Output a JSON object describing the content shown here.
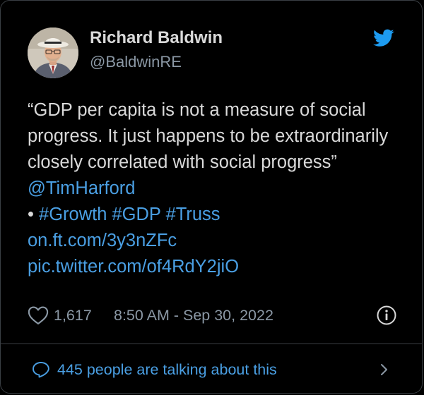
{
  "author": {
    "name": "Richard Baldwin",
    "handle": "@BaldwinRE"
  },
  "tweet": {
    "text_main": "“GDP per capita is not a measure of social progress. It just happens to be extraordinarily closely correlated with social progress” ",
    "mention": "@TimHarford",
    "bullet": "• ",
    "hashtags": [
      "#Growth",
      "#GDP",
      "#Truss"
    ],
    "link": "on.ft.com/3y3nZFc",
    "pic_link": "pic.twitter.com/of4RdY2jiO"
  },
  "meta": {
    "like_count": "1,617",
    "timestamp": "8:50 AM - Sep 30, 2022"
  },
  "footer": {
    "talking_text": "445 people are talking about this"
  },
  "icons": {
    "brand": "twitter-bird-icon",
    "like": "heart-icon",
    "info": "info-icon",
    "talk": "speech-bubble-icon",
    "chevron": "chevron-right-icon"
  },
  "colors": {
    "background": "#000000",
    "text": "#d9d9d9",
    "secondary": "#8b98a5",
    "link": "#4a9fe3",
    "brand": "#1d9bf0",
    "border": "#3a3f44"
  }
}
